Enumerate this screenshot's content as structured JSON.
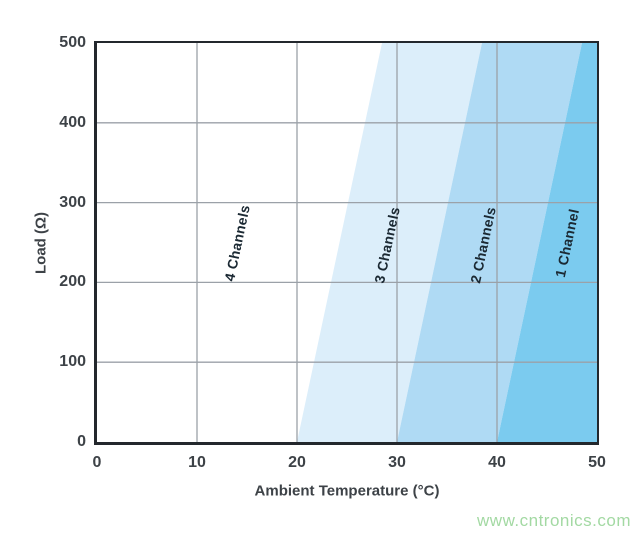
{
  "watermark": "www.cntronics.com",
  "colors": {
    "plot_border": "#23282d",
    "gridline": "#9ba1a8",
    "tick_text": "#3d4247",
    "region_label_text": "#1b2933",
    "watermark_green": "#a3d9a3"
  },
  "chart_data": {
    "type": "area",
    "title": "",
    "xlabel": "Ambient Temperature (°C)",
    "ylabel": "Load (Ω)",
    "xlim": [
      0,
      50
    ],
    "ylim": [
      0,
      500
    ],
    "x_ticks": [
      "0",
      "10",
      "20",
      "30",
      "40",
      "50"
    ],
    "y_ticks": [
      "0",
      "100",
      "200",
      "300",
      "400",
      "500"
    ],
    "grid": true,
    "legend": "none",
    "boundary_rise_c_per_full_height": 8.5,
    "bands": [
      {
        "label": "4 Channels",
        "fill": "#ffffff",
        "from_c": null,
        "to_c": 20,
        "label_t_c": 14.0,
        "label_load_ohm": 249
      },
      {
        "label": "3 Channels",
        "fill": "#dceefa",
        "from_c": 20,
        "to_c": 30,
        "label_t_c": 29.0,
        "label_load_ohm": 247
      },
      {
        "label": "2 Channels",
        "fill": "#afdaf4",
        "from_c": 30,
        "to_c": 40,
        "label_t_c": 38.6,
        "label_load_ohm": 247
      },
      {
        "label": "1 Channel",
        "fill": "#7bcbef",
        "from_c": 40,
        "to_c": null,
        "label_t_c": 47.0,
        "label_load_ohm": 250
      }
    ],
    "notes": "Diagonal shaded bands show max load vs ambient temperature for number of active channels; each boundary runs from (T, 0 ohm) to (T+8.5 C, 500 ohm)."
  }
}
